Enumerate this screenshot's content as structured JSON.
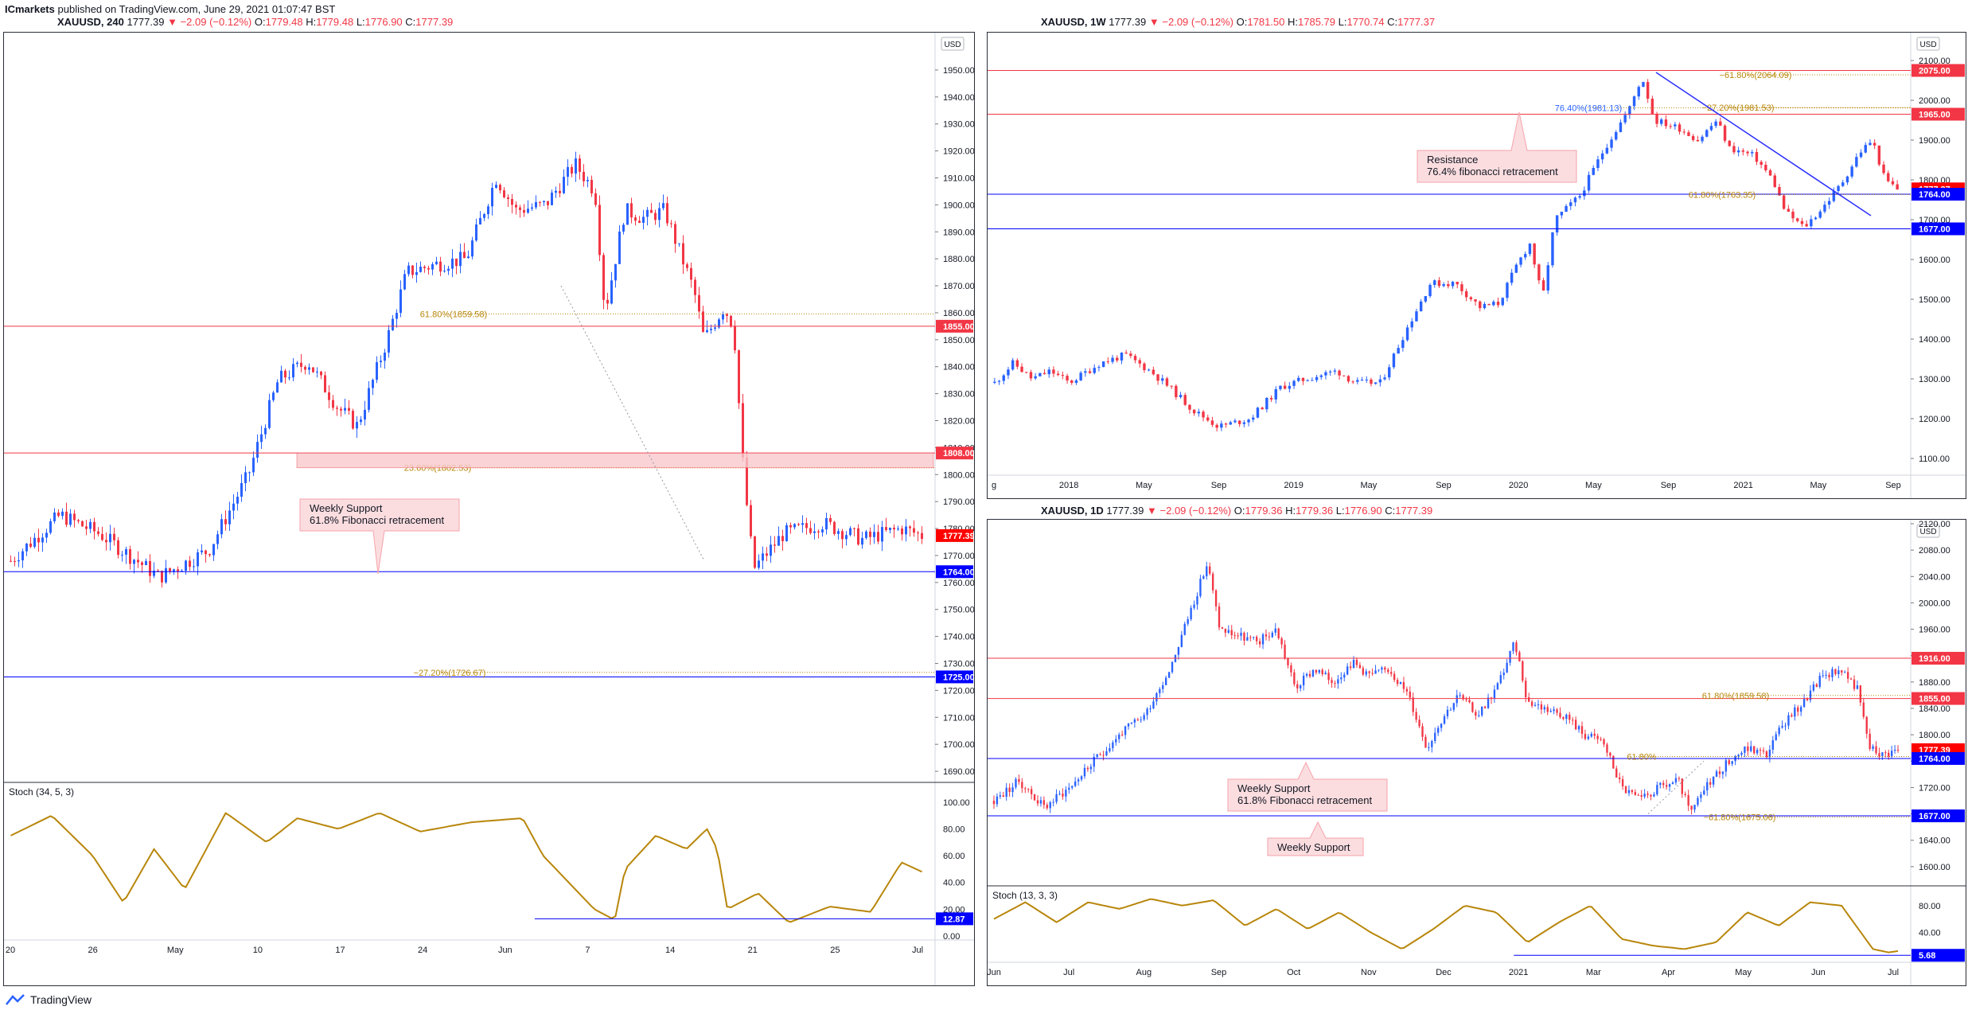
{
  "header": {
    "publisher": "ICmarkets",
    "published_text": "published on TradingView.com, June 29, 2021 01:07:47 BST"
  },
  "footer": {
    "brand": "TradingView"
  },
  "colors": {
    "up": "#2962ff",
    "down": "#f23645",
    "support": "#0000ff",
    "resistance": "#f23645",
    "stoch": "#b8860b",
    "fib": "#b8860b"
  },
  "chart_data": [
    {
      "type": "candlestick",
      "symbol": "XAUUSD",
      "timeframe": "240",
      "title_parts": {
        "last": "1777.39",
        "change": "−2.09 (−0.12%)",
        "o": "1779.48",
        "h": "1779.48",
        "l": "1776.90",
        "c": "1777.39"
      },
      "currency": "USD",
      "ylim": [
        1685,
        1955
      ],
      "y_ticks": [
        1690,
        1700,
        1710,
        1720,
        1730,
        1740,
        1750,
        1760,
        1770,
        1780,
        1790,
        1800,
        1810,
        1820,
        1830,
        1840,
        1850,
        1860,
        1870,
        1880,
        1890,
        1900,
        1910,
        1920,
        1930,
        1940,
        1950
      ],
      "x_ticks": [
        "20",
        "26",
        "May",
        "10",
        "17",
        "24",
        "Jun",
        "7",
        "14",
        "21",
        "25",
        "Jul"
      ],
      "levels": [
        {
          "price": 1855.0,
          "label": "1855.00",
          "kind": "resistance"
        },
        {
          "price": 1808.0,
          "label": "1808.00",
          "kind": "resistance"
        },
        {
          "price": 1764.0,
          "label": "1764.00",
          "kind": "support"
        },
        {
          "price": 1725.0,
          "label": "1725.00",
          "kind": "support"
        },
        {
          "price": 1777.39,
          "label": "1777.39",
          "kind": "last"
        }
      ],
      "fib_labels": [
        {
          "price": 1859.58,
          "text": "61.80%(1859.58)"
        },
        {
          "price": 1802.53,
          "text": "23.60%(1802.53)"
        },
        {
          "price": 1726.67,
          "text": "−27.20%(1726.67)"
        }
      ],
      "annotations": [
        {
          "text": [
            "Weekly Support",
            "61.8% Fibonacci retracement"
          ]
        }
      ],
      "path": [
        [
          0,
          1768
        ],
        [
          5,
          1785
        ],
        [
          9,
          1778
        ],
        [
          12,
          1770
        ],
        [
          15,
          1762
        ],
        [
          20,
          1772
        ],
        [
          24,
          1800
        ],
        [
          27,
          1835
        ],
        [
          30,
          1842
        ],
        [
          33,
          1825
        ],
        [
          35,
          1818
        ],
        [
          38,
          1850
        ],
        [
          40,
          1875
        ],
        [
          43,
          1878
        ],
        [
          46,
          1880
        ],
        [
          49,
          1910
        ],
        [
          51,
          1898
        ],
        [
          54,
          1900
        ],
        [
          57,
          1915
        ],
        [
          59,
          1905
        ],
        [
          60,
          1860
        ],
        [
          62,
          1898
        ],
        [
          64,
          1895
        ],
        [
          66,
          1898
        ],
        [
          69,
          1868
        ],
        [
          70,
          1850
        ],
        [
          72,
          1862
        ],
        [
          73,
          1855
        ],
        [
          74,
          1800
        ],
        [
          75,
          1765
        ],
        [
          78,
          1778
        ],
        [
          82,
          1782
        ],
        [
          86,
          1776
        ],
        [
          90,
          1780
        ],
        [
          92,
          1777.4
        ]
      ],
      "indicator": {
        "title": "Stoch (34, 5, 3)",
        "ylim": [
          0,
          110
        ],
        "y_ticks": [
          0,
          20,
          40,
          60,
          80,
          100
        ],
        "level": {
          "value": 12.87,
          "label": "12.87"
        },
        "values": [
          [
            0,
            75
          ],
          [
            4,
            90
          ],
          [
            8,
            60
          ],
          [
            11,
            25
          ],
          [
            14,
            65
          ],
          [
            17,
            35
          ],
          [
            21,
            92
          ],
          [
            25,
            70
          ],
          [
            28,
            88
          ],
          [
            32,
            80
          ],
          [
            36,
            92
          ],
          [
            40,
            78
          ],
          [
            45,
            85
          ],
          [
            50,
            88
          ],
          [
            52,
            60
          ],
          [
            57,
            20
          ],
          [
            59,
            12
          ],
          [
            60,
            50
          ],
          [
            63,
            75
          ],
          [
            66,
            65
          ],
          [
            68,
            80
          ],
          [
            69,
            65
          ],
          [
            70,
            20
          ],
          [
            73,
            32
          ],
          [
            76,
            10
          ],
          [
            80,
            22
          ],
          [
            84,
            18
          ],
          [
            87,
            55
          ],
          [
            89,
            48
          ]
        ]
      }
    },
    {
      "type": "candlestick",
      "symbol": "XAUUSD",
      "timeframe": "1W",
      "title_parts": {
        "last": "1777.39",
        "change": "−2.09 (−0.12%)",
        "o": "1781.50",
        "h": "1785.79",
        "l": "1770.74",
        "c": "1777.37"
      },
      "currency": "USD",
      "ylim": [
        1060,
        2130
      ],
      "y_ticks": [
        1100,
        1200,
        1300,
        1400,
        1500,
        1600,
        1700,
        1800,
        1900,
        2000,
        2100
      ],
      "x_ticks": [
        "g",
        "2018",
        "May",
        "Sep",
        "2019",
        "May",
        "Sep",
        "2020",
        "May",
        "Sep",
        "2021",
        "May",
        "Sep"
      ],
      "levels": [
        {
          "price": 2075.0,
          "label": "2075.00",
          "kind": "resistance"
        },
        {
          "price": 1965.0,
          "label": "1965.00",
          "kind": "resistance"
        },
        {
          "price": 1777.37,
          "label": "1777.37",
          "kind": "last"
        },
        {
          "price": 1764.0,
          "label": "1764.00",
          "kind": "support"
        },
        {
          "price": 1677.0,
          "label": "1677.00",
          "kind": "support"
        }
      ],
      "fib_labels": [
        {
          "price": 2064.09,
          "text": "−61.80%(2064.09)"
        },
        {
          "price": 1981.53,
          "text": "−27.20%(1981.53)"
        },
        {
          "price": 1981.13,
          "text": "76.40%(1981.13)"
        },
        {
          "price": 1763.35,
          "text": "61.80%(1763.35)"
        }
      ],
      "annotations": [
        {
          "text": [
            "Resistance",
            "76.4% fibonacci retracement"
          ]
        }
      ],
      "path": [
        [
          0,
          1290
        ],
        [
          3,
          1340
        ],
        [
          6,
          1300
        ],
        [
          9,
          1320
        ],
        [
          12,
          1290
        ],
        [
          17,
          1340
        ],
        [
          21,
          1360
        ],
        [
          25,
          1320
        ],
        [
          28,
          1280
        ],
        [
          32,
          1220
        ],
        [
          36,
          1180
        ],
        [
          41,
          1200
        ],
        [
          46,
          1280
        ],
        [
          50,
          1300
        ],
        [
          55,
          1320
        ],
        [
          58,
          1290
        ],
        [
          62,
          1290
        ],
        [
          66,
          1420
        ],
        [
          70,
          1540
        ],
        [
          74,
          1540
        ],
        [
          78,
          1480
        ],
        [
          81,
          1490
        ],
        [
          84,
          1590
        ],
        [
          86,
          1640
        ],
        [
          88,
          1500
        ],
        [
          90,
          1700
        ],
        [
          94,
          1760
        ],
        [
          98,
          1880
        ],
        [
          102,
          1980
        ],
        [
          104,
          2060
        ],
        [
          106,
          1950
        ],
        [
          110,
          1930
        ],
        [
          113,
          1900
        ],
        [
          116,
          1950
        ],
        [
          118,
          1880
        ],
        [
          122,
          1860
        ],
        [
          125,
          1800
        ],
        [
          127,
          1720
        ],
        [
          130,
          1680
        ],
        [
          133,
          1730
        ],
        [
          136,
          1790
        ],
        [
          139,
          1870
        ],
        [
          141,
          1900
        ],
        [
          143,
          1800
        ],
        [
          145,
          1777.37
        ]
      ],
      "trendline_start": {
        "index": 104,
        "price": 2070
      },
      "trendline_end": {
        "index": 150,
        "price": 1710
      }
    },
    {
      "type": "candlestick",
      "symbol": "XAUUSD",
      "timeframe": "1D",
      "title_parts": {
        "last": "1777.39",
        "change": "−2.09 (−0.12%)",
        "o": "1779.36",
        "h": "1779.36",
        "l": "1776.90",
        "c": "1777.39"
      },
      "currency": "USD",
      "ylim": [
        1595,
        2120
      ],
      "y_ticks": [
        1600,
        1640,
        1680,
        1720,
        1760,
        1800,
        1840,
        1880,
        1920,
        1960,
        2000,
        2040,
        2080,
        2120
      ],
      "x_ticks": [
        "Jun",
        "Jul",
        "Aug",
        "Sep",
        "Oct",
        "Nov",
        "Dec",
        "2021",
        "Mar",
        "Apr",
        "May",
        "Jun",
        "Jul"
      ],
      "levels": [
        {
          "price": 1916.0,
          "label": "1916.00",
          "kind": "resistance"
        },
        {
          "price": 1855.0,
          "label": "1855.00",
          "kind": "resistance"
        },
        {
          "price": 1777.39,
          "label": "1777.39",
          "kind": "last"
        },
        {
          "price": 1764.0,
          "label": "1764.00",
          "kind": "support"
        },
        {
          "price": 1677.0,
          "label": "1677.00",
          "kind": "support"
        }
      ],
      "fib_labels": [
        {
          "price": 1859.58,
          "text": "61.80%(1859.58)"
        },
        {
          "price": 1767,
          "text": "61.80%"
        },
        {
          "price": 1675.06,
          "text": "−61.80%(1675.06)"
        }
      ],
      "annotations": [
        {
          "text": [
            "Weekly Support",
            "61.8% Fibonacci retracement"
          ]
        },
        {
          "text": [
            "Weekly Support"
          ]
        }
      ],
      "path": [
        [
          0,
          1700
        ],
        [
          8,
          1730
        ],
        [
          16,
          1690
        ],
        [
          24,
          1720
        ],
        [
          32,
          1760
        ],
        [
          40,
          1800
        ],
        [
          48,
          1830
        ],
        [
          56,
          1900
        ],
        [
          62,
          1980
        ],
        [
          68,
          2060
        ],
        [
          72,
          1960
        ],
        [
          78,
          1950
        ],
        [
          84,
          1940
        ],
        [
          90,
          1960
        ],
        [
          96,
          1870
        ],
        [
          102,
          1900
        ],
        [
          108,
          1880
        ],
        [
          114,
          1910
        ],
        [
          120,
          1890
        ],
        [
          126,
          1900
        ],
        [
          132,
          1860
        ],
        [
          138,
          1780
        ],
        [
          142,
          1820
        ],
        [
          148,
          1860
        ],
        [
          154,
          1830
        ],
        [
          160,
          1870
        ],
        [
          166,
          1940
        ],
        [
          170,
          1850
        ],
        [
          176,
          1840
        ],
        [
          182,
          1830
        ],
        [
          188,
          1800
        ],
        [
          194,
          1790
        ],
        [
          200,
          1720
        ],
        [
          206,
          1700
        ],
        [
          212,
          1720
        ],
        [
          218,
          1730
        ],
        [
          222,
          1680
        ],
        [
          228,
          1730
        ],
        [
          234,
          1760
        ],
        [
          240,
          1780
        ],
        [
          246,
          1770
        ],
        [
          252,
          1820
        ],
        [
          258,
          1850
        ],
        [
          264,
          1890
        ],
        [
          270,
          1900
        ],
        [
          275,
          1870
        ],
        [
          279,
          1780
        ],
        [
          283,
          1770
        ],
        [
          288,
          1777.39
        ]
      ],
      "indicator": {
        "title": "Stoch (13, 3, 3)",
        "ylim": [
          0,
          100
        ],
        "y_ticks": [
          40,
          80
        ],
        "level": {
          "value": 5.68,
          "label": "5.68"
        },
        "values": [
          [
            0,
            60
          ],
          [
            10,
            85
          ],
          [
            20,
            55
          ],
          [
            30,
            85
          ],
          [
            40,
            75
          ],
          [
            50,
            90
          ],
          [
            60,
            80
          ],
          [
            70,
            88
          ],
          [
            80,
            50
          ],
          [
            90,
            75
          ],
          [
            100,
            45
          ],
          [
            110,
            70
          ],
          [
            120,
            40
          ],
          [
            130,
            15
          ],
          [
            140,
            45
          ],
          [
            150,
            80
          ],
          [
            160,
            70
          ],
          [
            170,
            25
          ],
          [
            180,
            55
          ],
          [
            190,
            80
          ],
          [
            200,
            30
          ],
          [
            210,
            20
          ],
          [
            220,
            15
          ],
          [
            230,
            25
          ],
          [
            240,
            70
          ],
          [
            250,
            50
          ],
          [
            260,
            85
          ],
          [
            270,
            80
          ],
          [
            280,
            15
          ],
          [
            285,
            10
          ],
          [
            288,
            12
          ]
        ]
      }
    }
  ]
}
